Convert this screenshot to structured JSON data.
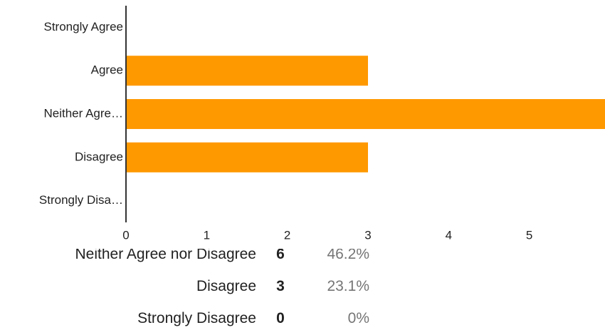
{
  "chart_data": {
    "type": "bar",
    "orientation": "horizontal",
    "categories": [
      "Strongly Agree",
      "Agree",
      "Neither Agre…",
      "Disagree",
      "Strongly Disa…"
    ],
    "values": [
      0,
      3,
      6,
      3,
      0
    ],
    "color": "#ff9900",
    "xlim": [
      0,
      6
    ],
    "xticks": [
      0,
      1,
      2,
      3,
      4,
      5
    ]
  },
  "table": {
    "rows": [
      [
        "Neither Agree nor Disagree",
        6,
        "46.2%"
      ],
      [
        "Disagree",
        3,
        "23.1%"
      ],
      [
        "Strongly Disagree",
        0,
        "0%"
      ]
    ]
  }
}
